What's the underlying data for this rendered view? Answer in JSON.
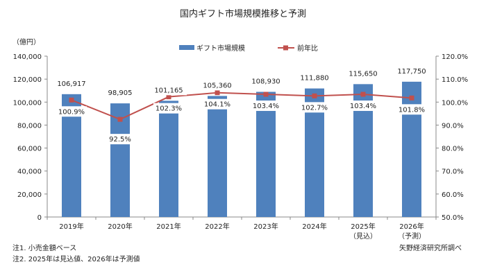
{
  "chart_data": {
    "type": "bar+line",
    "title": "国内ギフト市場規模推移と予測",
    "ylabel": "（億円）",
    "categories": [
      "2019年",
      "2020年",
      "2021年",
      "2022年",
      "2023年",
      "2024年",
      "2025年",
      "2026年"
    ],
    "category_sublabels": [
      "",
      "",
      "",
      "",
      "",
      "",
      "（見込）",
      "（予測）"
    ],
    "series": [
      {
        "name": "ギフト市場規模",
        "type": "bar",
        "axis": "left",
        "color": "#4F81BD",
        "values": [
          106917,
          98905,
          101165,
          105360,
          108930,
          111880,
          115650,
          117750
        ],
        "labels": [
          "106,917",
          "98,905",
          "101,165",
          "105,360",
          "108,930",
          "111,880",
          "115,650",
          "117,750"
        ]
      },
      {
        "name": "前年比",
        "type": "line",
        "axis": "right",
        "color": "#C0504D",
        "values": [
          100.9,
          92.5,
          102.3,
          104.1,
          103.4,
          102.7,
          103.4,
          101.8
        ],
        "labels": [
          "100.9%",
          "92.5%",
          "102.3%",
          "104.1%",
          "103.4%",
          "102.7%",
          "103.4%",
          "101.8%"
        ]
      }
    ],
    "ylim": [
      0,
      140000
    ],
    "yticks": [
      "0",
      "20,000",
      "40,000",
      "60,000",
      "80,000",
      "100,000",
      "120,000",
      "140,000"
    ],
    "y2lim": [
      50,
      120
    ],
    "y2ticks": [
      "50.0%",
      "60.0%",
      "70.0%",
      "80.0%",
      "90.0%",
      "100.0%",
      "110.0%",
      "120.0%"
    ],
    "legend": "top-center",
    "grid": false
  },
  "notes": [
    "注1. 小売金額ベース",
    "注2. 2025年は見込値、2026年は予測値"
  ],
  "source": "矢野経済研究所調べ"
}
